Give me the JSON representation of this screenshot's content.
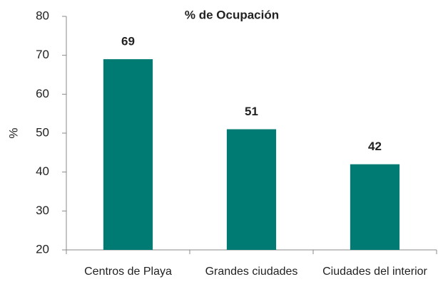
{
  "chart_data": {
    "type": "bar",
    "title": "% de Ocupación",
    "y_label": "%",
    "categories": [
      "Centros de Playa",
      "Grandes ciudades",
      "Ciudades del interior"
    ],
    "values": [
      69,
      51,
      42
    ],
    "color": "#007b73",
    "ylim": [
      20,
      80
    ],
    "yticks": [
      20,
      30,
      40,
      50,
      60,
      70,
      80
    ],
    "grid": false
  }
}
